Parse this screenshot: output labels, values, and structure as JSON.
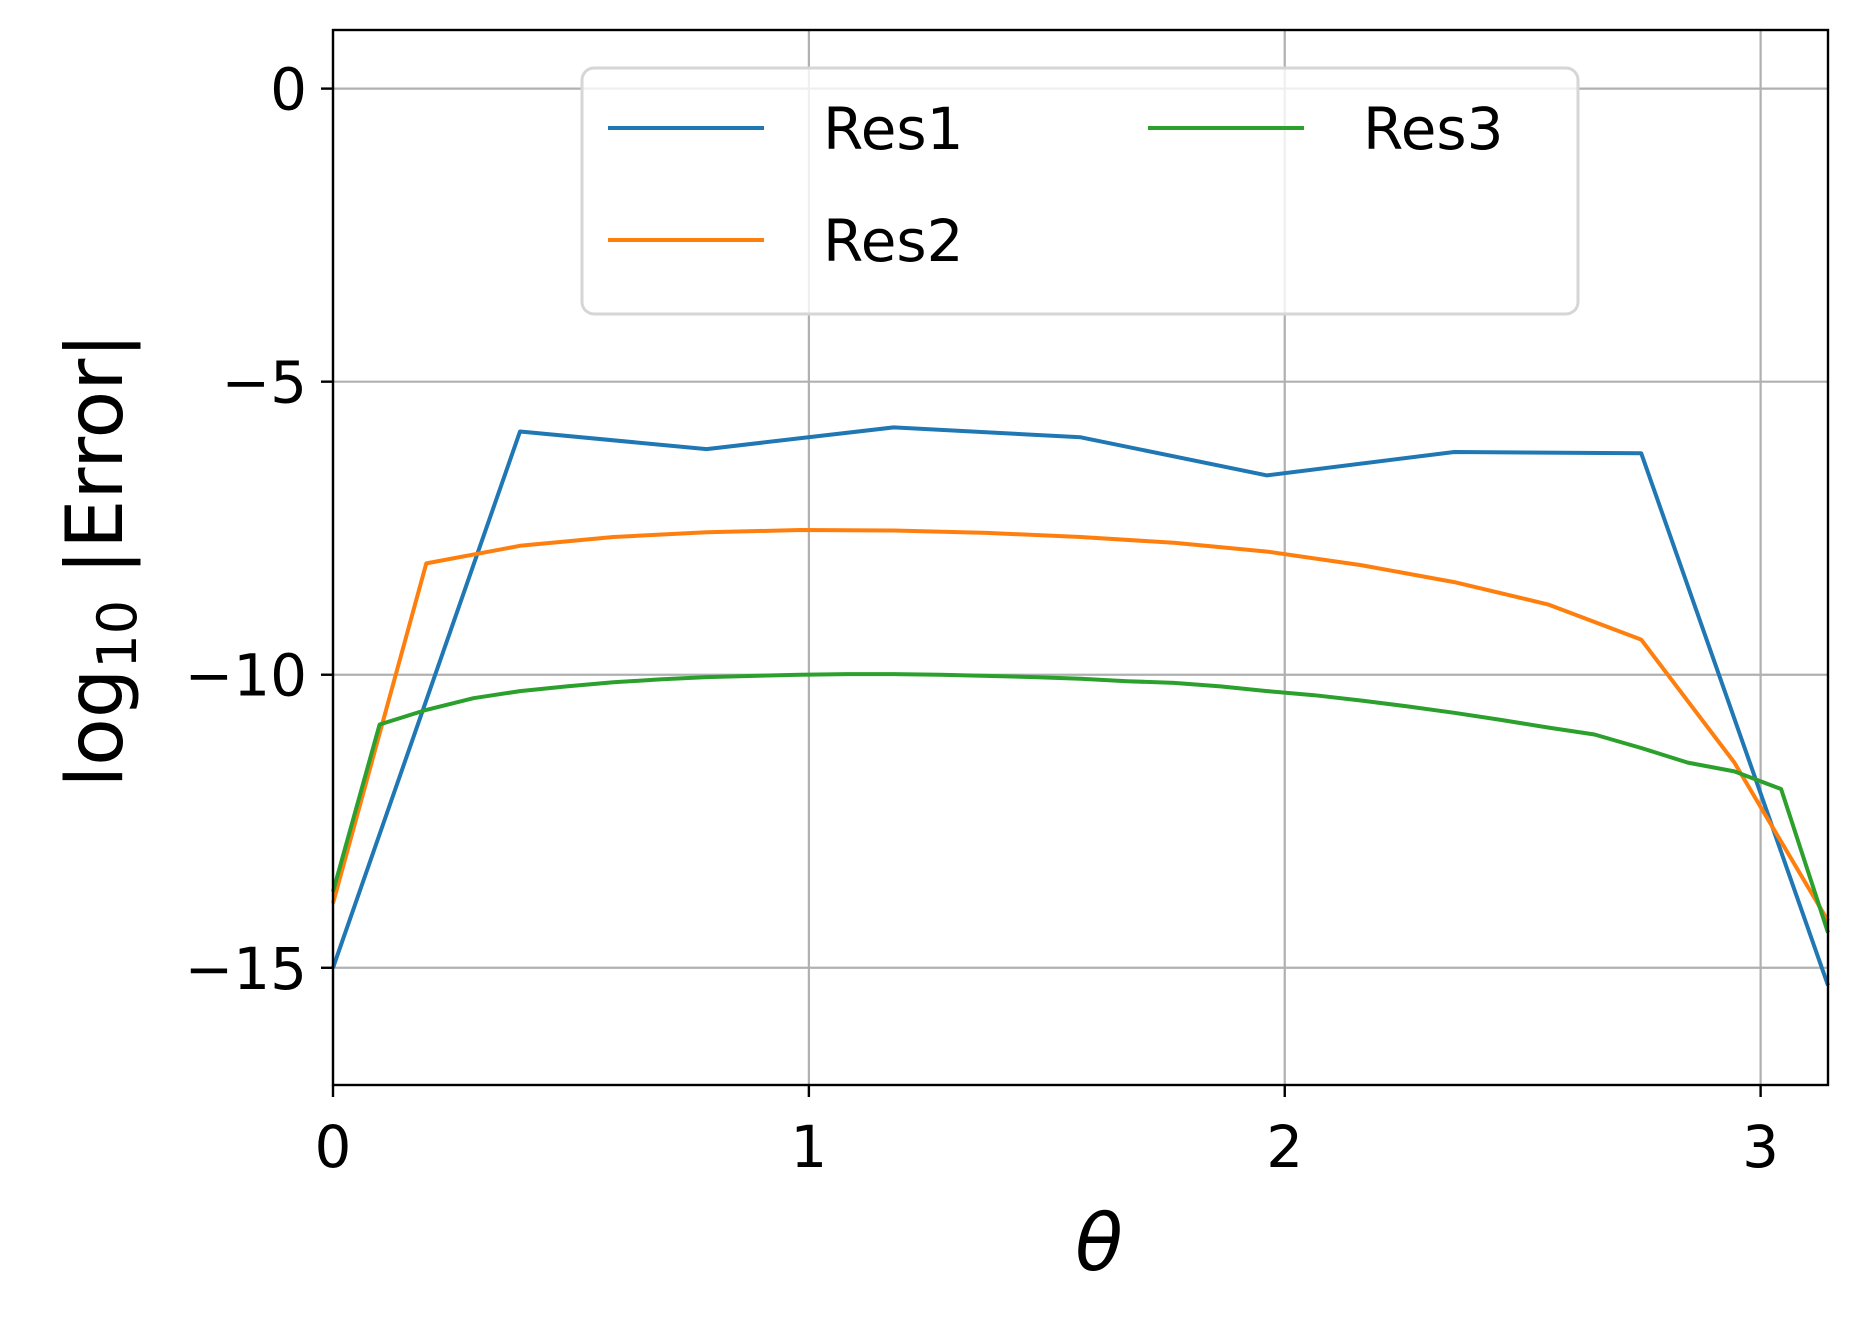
{
  "chart_data": {
    "type": "line",
    "xlabel": "θ",
    "ylabel_main": "log",
    "ylabel_sub": "10",
    "ylabel_rest": " |Error|",
    "xlim": [
      0,
      3.1416
    ],
    "ylim": [
      -17,
      1
    ],
    "xticks": [
      0,
      1,
      2,
      3
    ],
    "xtick_labels": [
      "0",
      "1",
      "2",
      "3"
    ],
    "yticks": [
      0,
      -5,
      -10,
      -15
    ],
    "ytick_labels": [
      "0",
      "−5",
      "−10",
      "−15"
    ],
    "grid": true,
    "legend": {
      "placement": "top-center",
      "columns": 2
    },
    "series": [
      {
        "name": "Res1",
        "color": "#1f77b4",
        "points": [
          [
            0,
            -15.0
          ],
          [
            0.393,
            -5.85
          ],
          [
            0.785,
            -6.15
          ],
          [
            1.178,
            -5.78
          ],
          [
            1.571,
            -5.95
          ],
          [
            1.963,
            -6.6
          ],
          [
            2.356,
            -6.2
          ],
          [
            2.749,
            -6.22
          ],
          [
            3.1416,
            -15.3
          ]
        ]
      },
      {
        "name": "Res2",
        "color": "#ff7f0e",
        "points": [
          [
            0,
            -13.9
          ],
          [
            0.196,
            -8.1
          ],
          [
            0.393,
            -7.8
          ],
          [
            0.589,
            -7.65
          ],
          [
            0.785,
            -7.57
          ],
          [
            0.982,
            -7.53
          ],
          [
            1.178,
            -7.54
          ],
          [
            1.374,
            -7.58
          ],
          [
            1.571,
            -7.65
          ],
          [
            1.767,
            -7.75
          ],
          [
            1.963,
            -7.9
          ],
          [
            2.16,
            -8.13
          ],
          [
            2.356,
            -8.42
          ],
          [
            2.553,
            -8.8
          ],
          [
            2.749,
            -9.4
          ],
          [
            2.945,
            -11.5
          ],
          [
            3.1416,
            -14.2
          ]
        ]
      },
      {
        "name": "Res3",
        "color": "#2ca02c",
        "points": [
          [
            0,
            -13.7
          ],
          [
            0.098,
            -10.85
          ],
          [
            0.196,
            -10.6
          ],
          [
            0.295,
            -10.4
          ],
          [
            0.393,
            -10.28
          ],
          [
            0.491,
            -10.2
          ],
          [
            0.589,
            -10.13
          ],
          [
            0.687,
            -10.08
          ],
          [
            0.785,
            -10.04
          ],
          [
            0.884,
            -10.02
          ],
          [
            0.982,
            -10.0
          ],
          [
            1.08,
            -9.99
          ],
          [
            1.178,
            -9.99
          ],
          [
            1.276,
            -10.0
          ],
          [
            1.374,
            -10.02
          ],
          [
            1.473,
            -10.04
          ],
          [
            1.571,
            -10.07
          ],
          [
            1.669,
            -10.11
          ],
          [
            1.767,
            -10.14
          ],
          [
            1.865,
            -10.2
          ],
          [
            1.963,
            -10.28
          ],
          [
            2.062,
            -10.35
          ],
          [
            2.16,
            -10.44
          ],
          [
            2.258,
            -10.54
          ],
          [
            2.356,
            -10.65
          ],
          [
            2.454,
            -10.77
          ],
          [
            2.553,
            -10.9
          ],
          [
            2.651,
            -11.02
          ],
          [
            2.749,
            -11.25
          ],
          [
            2.847,
            -11.5
          ],
          [
            2.945,
            -11.65
          ],
          [
            3.043,
            -11.95
          ],
          [
            3.1416,
            -14.4
          ]
        ]
      }
    ]
  }
}
